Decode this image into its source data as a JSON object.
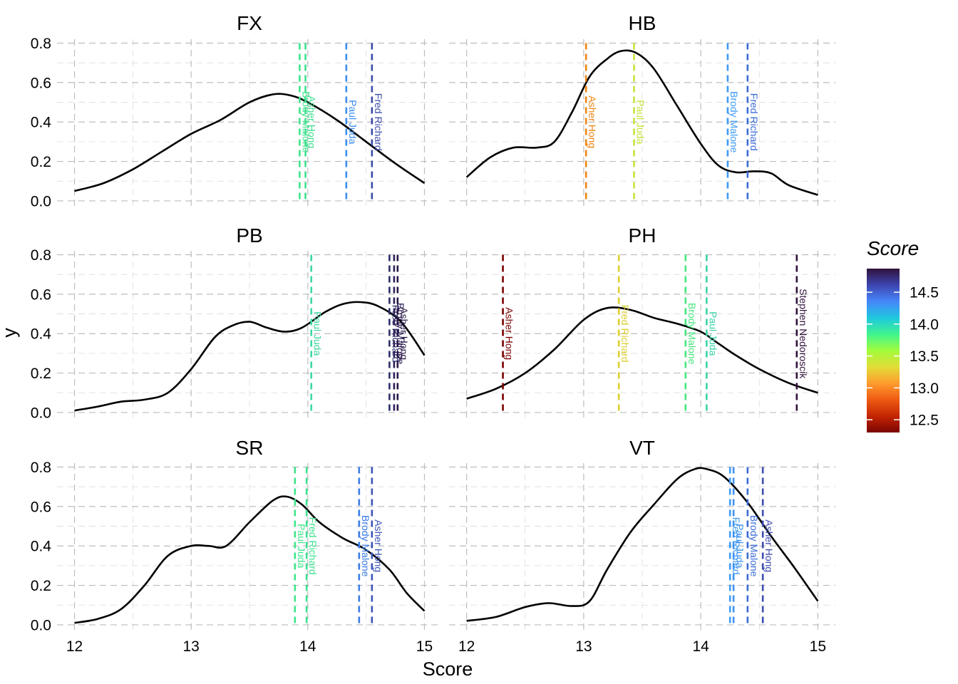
{
  "chart_data": {
    "type": "line",
    "facet": "event",
    "xlabel": "Score",
    "ylabel": "y",
    "xlim": [
      11.85,
      15.15
    ],
    "ylim": [
      -0.04,
      0.82
    ],
    "x_ticks": [
      12,
      13,
      14,
      15
    ],
    "y_ticks": [
      0.0,
      0.2,
      0.4,
      0.6,
      0.8
    ],
    "x_tick_labels": [
      "12",
      "13",
      "14",
      "15"
    ],
    "y_tick_labels": [
      "0.0",
      "0.2",
      "0.4",
      "0.6",
      "0.8"
    ],
    "grid": "on (dashed)",
    "legend": {
      "title": "Score",
      "placement": "right",
      "type": "colorbar",
      "range": [
        12.3,
        14.87
      ],
      "ticks": [
        12.5,
        13.0,
        13.5,
        14.0,
        14.5
      ],
      "tick_labels": [
        "12.5",
        "13.0",
        "13.5",
        "14.0",
        "14.5"
      ]
    },
    "panels": [
      {
        "title": "FX",
        "density": [
          [
            12.0,
            0.05
          ],
          [
            12.25,
            0.09
          ],
          [
            12.5,
            0.16
          ],
          [
            12.75,
            0.25
          ],
          [
            13.0,
            0.34
          ],
          [
            13.25,
            0.41
          ],
          [
            13.5,
            0.5
          ],
          [
            13.7,
            0.54
          ],
          [
            13.85,
            0.535
          ],
          [
            14.0,
            0.5
          ],
          [
            14.25,
            0.41
          ],
          [
            14.5,
            0.3
          ],
          [
            14.75,
            0.19
          ],
          [
            15.0,
            0.09
          ]
        ],
        "lines": [
          {
            "name": "Brody Malone",
            "score": 13.93,
            "color": "#3ee58a"
          },
          {
            "name": "Asher Hong",
            "score": 13.98,
            "color": "#3ee08e"
          },
          {
            "name": "Paul Juda",
            "score": 14.33,
            "color": "#3a8ef0"
          },
          {
            "name": "Fred Richard",
            "score": 14.55,
            "color": "#3b4ca8"
          }
        ]
      },
      {
        "title": "HB",
        "density": [
          [
            12.0,
            0.12
          ],
          [
            12.2,
            0.22
          ],
          [
            12.4,
            0.27
          ],
          [
            12.6,
            0.27
          ],
          [
            12.75,
            0.3
          ],
          [
            12.9,
            0.45
          ],
          [
            13.05,
            0.63
          ],
          [
            13.2,
            0.72
          ],
          [
            13.32,
            0.76
          ],
          [
            13.45,
            0.75
          ],
          [
            13.6,
            0.67
          ],
          [
            13.8,
            0.48
          ],
          [
            14.0,
            0.29
          ],
          [
            14.15,
            0.18
          ],
          [
            14.3,
            0.145
          ],
          [
            14.45,
            0.15
          ],
          [
            14.6,
            0.14
          ],
          [
            14.75,
            0.08
          ],
          [
            15.0,
            0.03
          ]
        ],
        "lines": [
          {
            "name": "Asher Hong",
            "score": 13.02,
            "color": "#ee8412"
          },
          {
            "name": "Paul Juda",
            "score": 13.43,
            "color": "#c3e43a"
          },
          {
            "name": "Brody Malone",
            "score": 14.23,
            "color": "#3e9af5"
          },
          {
            "name": "Fred Richard",
            "score": 14.4,
            "color": "#3b6bd6"
          }
        ]
      },
      {
        "title": "PB",
        "density": [
          [
            12.0,
            0.01
          ],
          [
            12.2,
            0.03
          ],
          [
            12.4,
            0.055
          ],
          [
            12.6,
            0.065
          ],
          [
            12.8,
            0.1
          ],
          [
            13.0,
            0.22
          ],
          [
            13.2,
            0.38
          ],
          [
            13.35,
            0.44
          ],
          [
            13.5,
            0.46
          ],
          [
            13.65,
            0.43
          ],
          [
            13.8,
            0.41
          ],
          [
            13.95,
            0.43
          ],
          [
            14.15,
            0.51
          ],
          [
            14.3,
            0.55
          ],
          [
            14.45,
            0.56
          ],
          [
            14.6,
            0.54
          ],
          [
            14.8,
            0.46
          ],
          [
            15.0,
            0.29
          ]
        ],
        "lines": [
          {
            "name": "Paul Juda",
            "score": 14.03,
            "color": "#3fd8a0"
          },
          {
            "name": "Fred Richard",
            "score": 14.7,
            "color": "#2b2f6e"
          },
          {
            "name": "Brody Malone",
            "score": 14.74,
            "color": "#2d1f57"
          },
          {
            "name": "Asher Hong",
            "score": 14.77,
            "color": "#2a1846"
          }
        ]
      },
      {
        "title": "PH",
        "density": [
          [
            12.0,
            0.07
          ],
          [
            12.25,
            0.12
          ],
          [
            12.5,
            0.2
          ],
          [
            12.75,
            0.32
          ],
          [
            13.0,
            0.47
          ],
          [
            13.2,
            0.53
          ],
          [
            13.4,
            0.52
          ],
          [
            13.6,
            0.48
          ],
          [
            13.8,
            0.45
          ],
          [
            14.0,
            0.41
          ],
          [
            14.15,
            0.35
          ],
          [
            14.3,
            0.29
          ],
          [
            14.5,
            0.22
          ],
          [
            14.75,
            0.15
          ],
          [
            15.0,
            0.1
          ]
        ],
        "lines": [
          {
            "name": "Asher Hong",
            "score": 12.31,
            "color": "#7a0403"
          },
          {
            "name": "Fred Richard",
            "score": 13.3,
            "color": "#dccf2e"
          },
          {
            "name": "Brody Malone",
            "score": 13.87,
            "color": "#48e67e"
          },
          {
            "name": "Paul Juda",
            "score": 14.05,
            "color": "#3bd3a8"
          },
          {
            "name": "Stephen Nedoroscik",
            "score": 14.82,
            "color": "#30123b"
          }
        ]
      },
      {
        "title": "SR",
        "density": [
          [
            12.0,
            0.01
          ],
          [
            12.2,
            0.03
          ],
          [
            12.4,
            0.08
          ],
          [
            12.6,
            0.2
          ],
          [
            12.8,
            0.35
          ],
          [
            13.0,
            0.4
          ],
          [
            13.15,
            0.4
          ],
          [
            13.3,
            0.4
          ],
          [
            13.5,
            0.52
          ],
          [
            13.7,
            0.63
          ],
          [
            13.82,
            0.65
          ],
          [
            13.95,
            0.61
          ],
          [
            14.1,
            0.52
          ],
          [
            14.3,
            0.44
          ],
          [
            14.5,
            0.38
          ],
          [
            14.7,
            0.28
          ],
          [
            14.85,
            0.16
          ],
          [
            15.0,
            0.07
          ]
        ],
        "lines": [
          {
            "name": "Paul Juda",
            "score": 13.89,
            "color": "#3fe68c"
          },
          {
            "name": "Fred Richard",
            "score": 13.99,
            "color": "#3ee090"
          },
          {
            "name": "Brody Malone",
            "score": 14.44,
            "color": "#3b7de6"
          },
          {
            "name": "Asher Hong",
            "score": 14.55,
            "color": "#3c55b8"
          }
        ]
      },
      {
        "title": "VT",
        "density": [
          [
            12.0,
            0.02
          ],
          [
            12.25,
            0.04
          ],
          [
            12.5,
            0.09
          ],
          [
            12.7,
            0.11
          ],
          [
            12.9,
            0.095
          ],
          [
            13.05,
            0.12
          ],
          [
            13.2,
            0.28
          ],
          [
            13.4,
            0.47
          ],
          [
            13.6,
            0.61
          ],
          [
            13.8,
            0.74
          ],
          [
            13.95,
            0.79
          ],
          [
            14.05,
            0.79
          ],
          [
            14.2,
            0.75
          ],
          [
            14.4,
            0.62
          ],
          [
            14.6,
            0.45
          ],
          [
            14.8,
            0.29
          ],
          [
            15.0,
            0.12
          ]
        ],
        "lines": [
          {
            "name": "Fred Richard",
            "score": 14.25,
            "color": "#3d9bf3"
          },
          {
            "name": "Paul Juda",
            "score": 14.28,
            "color": "#3e92f0"
          },
          {
            "name": "Brody Malone",
            "score": 14.4,
            "color": "#3b6bd6"
          },
          {
            "name": "Asher Hong",
            "score": 14.53,
            "color": "#3c4bb0"
          }
        ]
      }
    ]
  }
}
